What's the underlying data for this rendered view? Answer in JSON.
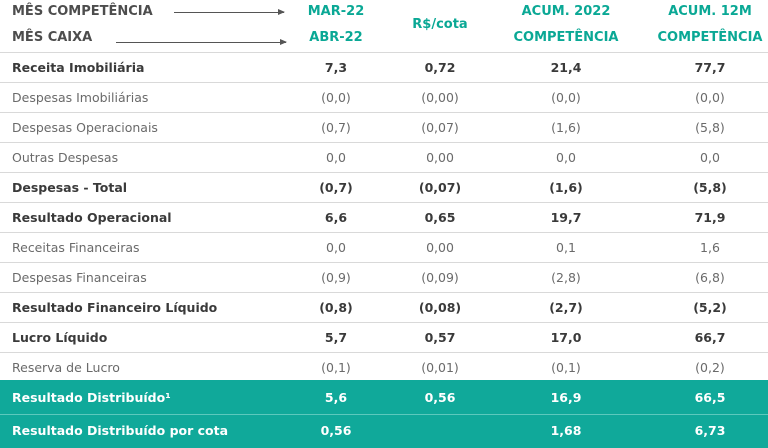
{
  "header": {
    "row1_label": "MÊS COMPETÊNCIA",
    "row2_label": "MÊS CAIXA",
    "col1_top": "MAR-22",
    "col1_bottom": "ABR-22",
    "col2": "R$/cota",
    "col3_top": "ACUM. 2022",
    "col3_bottom": "COMPETÊNCIA",
    "col4_top": "ACUM. 12M",
    "col4_bottom": "COMPETÊNCIA"
  },
  "rows": [
    {
      "label": "Receita Imobiliária",
      "bold": true,
      "values": [
        "7,3",
        "0,72",
        "21,4",
        "77,7"
      ]
    },
    {
      "label": "Despesas Imobiliárias",
      "bold": false,
      "values": [
        "(0,0)",
        "(0,00)",
        "(0,0)",
        "(0,0)"
      ]
    },
    {
      "label": "Despesas Operacionais",
      "bold": false,
      "values": [
        "(0,7)",
        "(0,07)",
        "(1,6)",
        "(5,8)"
      ]
    },
    {
      "label": "Outras Despesas",
      "bold": false,
      "values": [
        "0,0",
        "0,00",
        "0,0",
        "0,0"
      ]
    },
    {
      "label": "Despesas - Total",
      "bold": true,
      "values": [
        "(0,7)",
        "(0,07)",
        "(1,6)",
        "(5,8)"
      ]
    },
    {
      "label": "Resultado Operacional",
      "bold": true,
      "values": [
        "6,6",
        "0,65",
        "19,7",
        "71,9"
      ]
    },
    {
      "label": "Receitas Financeiras",
      "bold": false,
      "values": [
        "0,0",
        "0,00",
        "0,1",
        "1,6"
      ]
    },
    {
      "label": "Despesas Financeiras",
      "bold": false,
      "values": [
        "(0,9)",
        "(0,09)",
        "(2,8)",
        "(6,8)"
      ]
    },
    {
      "label": "Resultado Financeiro Líquido",
      "bold": true,
      "values": [
        "(0,8)",
        "(0,08)",
        "(2,7)",
        "(5,2)"
      ]
    },
    {
      "label": "Lucro Líquido",
      "bold": true,
      "values": [
        "5,7",
        "0,57",
        "17,0",
        "66,7"
      ]
    },
    {
      "label": "Reserva de Lucro",
      "bold": false,
      "values": [
        "(0,1)",
        "(0,01)",
        "(0,1)",
        "(0,2)"
      ]
    }
  ],
  "footer": [
    {
      "label": "Resultado Distribuído¹",
      "values": [
        "5,6",
        "0,56",
        "16,9",
        "66,5"
      ]
    },
    {
      "label": "Resultado Distribuído por cota",
      "values": [
        "0,56",
        "",
        "1,68",
        "6,73"
      ]
    }
  ],
  "colors": {
    "accent": "#0aa895",
    "footer_bg": "#10a99a"
  }
}
